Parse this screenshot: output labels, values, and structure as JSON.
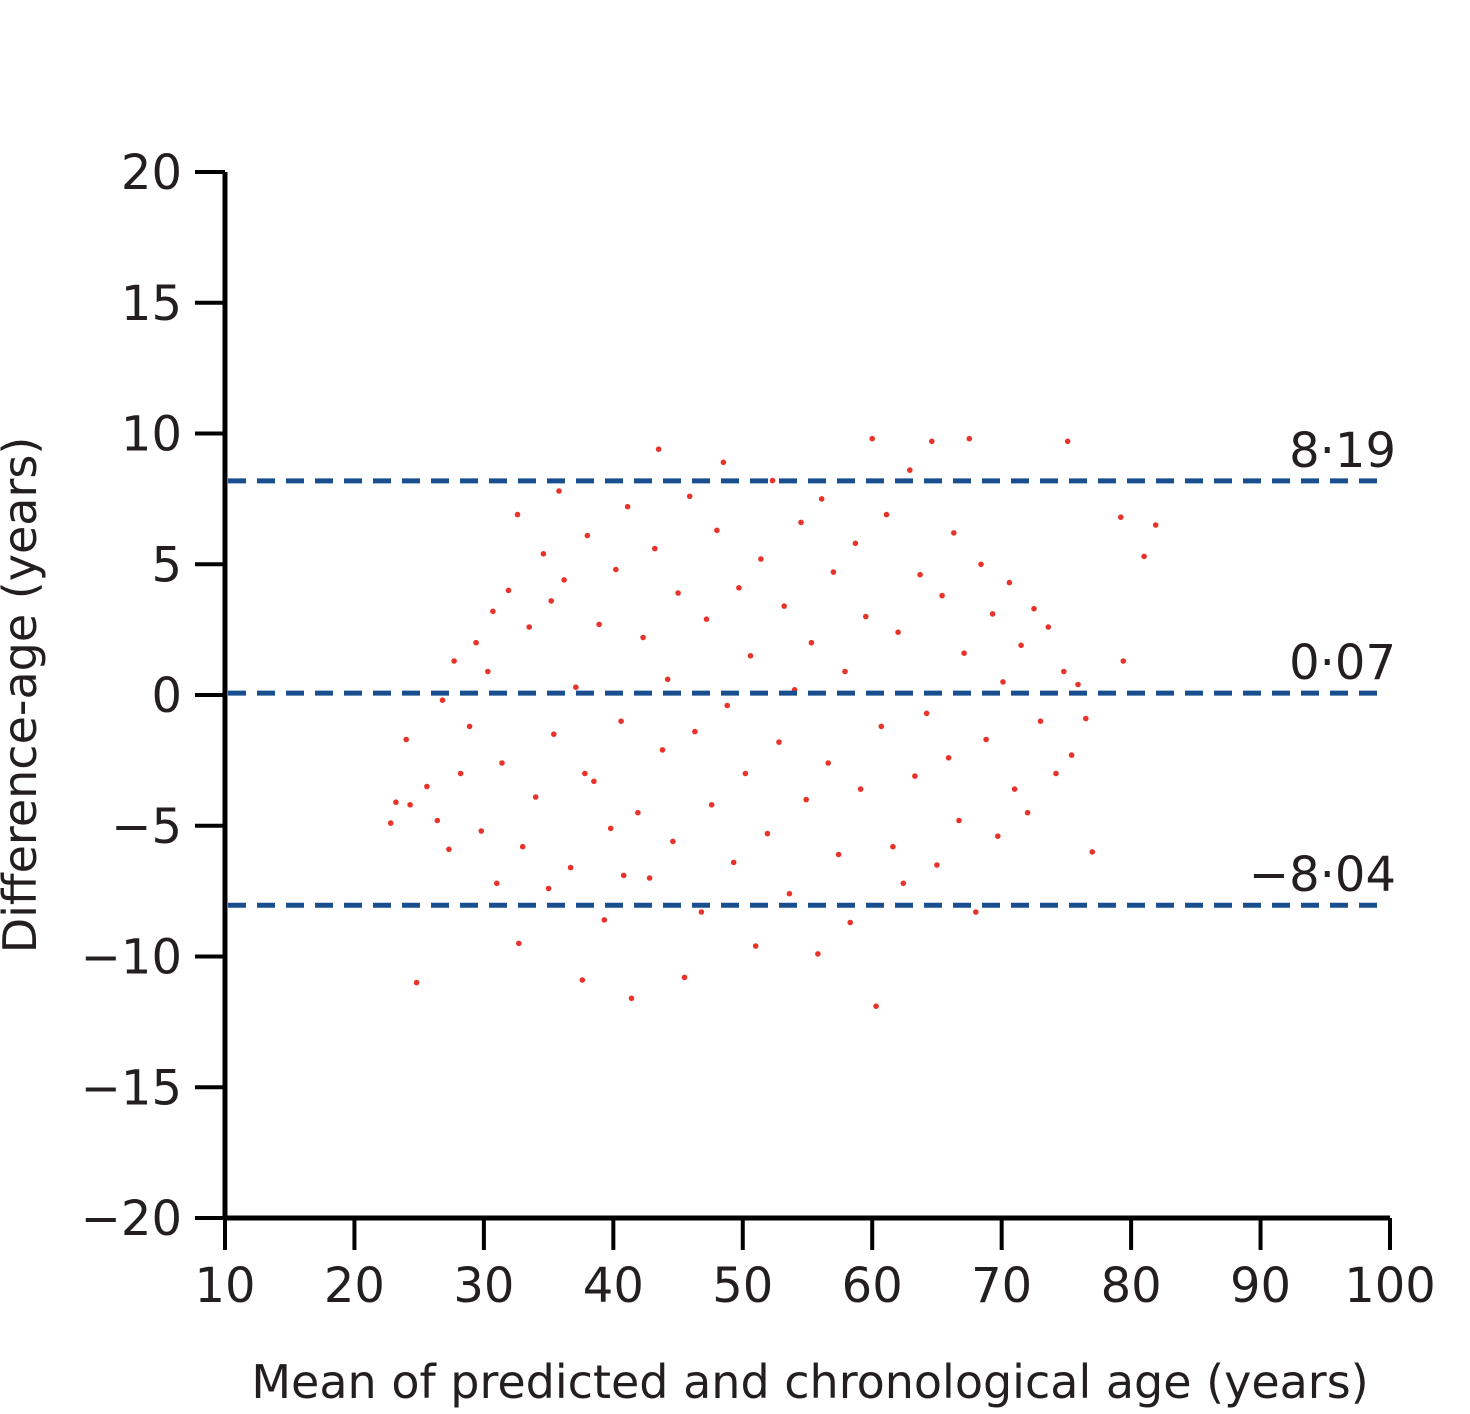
{
  "chart_data": {
    "type": "scatter",
    "title": "",
    "xlabel": "Mean of predicted and chronological age (years)",
    "ylabel": "Difference-age (years)",
    "xlim": [
      10,
      100
    ],
    "ylim": [
      -20,
      20
    ],
    "xticks": [
      10,
      20,
      30,
      40,
      50,
      60,
      70,
      80,
      90,
      100
    ],
    "yticks": [
      20,
      15,
      10,
      5,
      0,
      -5,
      -10,
      -15,
      -20
    ],
    "xtick_labels": [
      "10",
      "20",
      "30",
      "40",
      "50",
      "60",
      "70",
      "80",
      "90",
      "100"
    ],
    "ytick_labels": [
      "20",
      "15",
      "10",
      "5",
      "0",
      "−5",
      "−10",
      "−15",
      "−20"
    ],
    "point_color": "#e8332a",
    "line_color": "#1a4f8f",
    "grid": false,
    "reference_lines": [
      {
        "y": 8.19,
        "label": "8·19"
      },
      {
        "y": 0.07,
        "label": "0·07"
      },
      {
        "y": -8.04,
        "label": "−8·04"
      }
    ],
    "points": [
      [
        22.8,
        -4.9
      ],
      [
        23.2,
        -4.1
      ],
      [
        24.0,
        -1.7
      ],
      [
        24.3,
        -4.2
      ],
      [
        24.8,
        -11.0
      ],
      [
        25.6,
        -3.5
      ],
      [
        26.4,
        -4.8
      ],
      [
        26.8,
        -0.2
      ],
      [
        27.3,
        -5.9
      ],
      [
        27.7,
        1.3
      ],
      [
        28.2,
        -3.0
      ],
      [
        28.9,
        -1.2
      ],
      [
        29.4,
        2.0
      ],
      [
        29.8,
        -5.2
      ],
      [
        30.3,
        0.9
      ],
      [
        30.7,
        3.2
      ],
      [
        31.0,
        -7.2
      ],
      [
        31.4,
        -2.6
      ],
      [
        31.9,
        4.0
      ],
      [
        32.6,
        6.9
      ],
      [
        32.7,
        -9.5
      ],
      [
        33.0,
        -5.8
      ],
      [
        33.5,
        2.6
      ],
      [
        34.0,
        -3.9
      ],
      [
        34.6,
        5.4
      ],
      [
        35.0,
        -7.4
      ],
      [
        35.4,
        -1.5
      ],
      [
        35.8,
        7.8
      ],
      [
        36.2,
        4.4
      ],
      [
        36.7,
        -6.6
      ],
      [
        37.1,
        0.3
      ],
      [
        37.6,
        -10.9
      ],
      [
        38.0,
        6.1
      ],
      [
        38.5,
        -3.3
      ],
      [
        38.9,
        2.7
      ],
      [
        39.3,
        -8.6
      ],
      [
        39.8,
        -5.1
      ],
      [
        40.2,
        4.8
      ],
      [
        40.6,
        -1.0
      ],
      [
        41.1,
        7.2
      ],
      [
        41.4,
        -11.6
      ],
      [
        41.9,
        -4.5
      ],
      [
        42.3,
        2.2
      ],
      [
        42.8,
        -7.0
      ],
      [
        43.2,
        5.6
      ],
      [
        43.5,
        9.4
      ],
      [
        43.8,
        -2.1
      ],
      [
        44.2,
        0.6
      ],
      [
        44.6,
        -5.6
      ],
      [
        45.0,
        3.9
      ],
      [
        45.5,
        -10.8
      ],
      [
        45.9,
        7.6
      ],
      [
        46.3,
        -1.4
      ],
      [
        46.8,
        -8.3
      ],
      [
        47.2,
        2.9
      ],
      [
        47.6,
        -4.2
      ],
      [
        48.0,
        6.3
      ],
      [
        48.5,
        8.9
      ],
      [
        48.8,
        -0.4
      ],
      [
        49.3,
        -6.4
      ],
      [
        49.7,
        4.1
      ],
      [
        50.2,
        -3.0
      ],
      [
        50.6,
        1.5
      ],
      [
        51.0,
        -9.6
      ],
      [
        51.4,
        5.2
      ],
      [
        51.9,
        -5.3
      ],
      [
        52.3,
        8.2
      ],
      [
        52.8,
        -1.8
      ],
      [
        53.2,
        3.4
      ],
      [
        53.6,
        -7.6
      ],
      [
        54.0,
        0.2
      ],
      [
        54.5,
        6.6
      ],
      [
        54.9,
        -4.0
      ],
      [
        55.3,
        2.0
      ],
      [
        55.8,
        -9.9
      ],
      [
        56.1,
        7.5
      ],
      [
        56.6,
        -2.6
      ],
      [
        57.0,
        4.7
      ],
      [
        57.4,
        -6.1
      ],
      [
        57.9,
        0.9
      ],
      [
        58.3,
        -8.7
      ],
      [
        58.7,
        5.8
      ],
      [
        59.1,
        -3.6
      ],
      [
        59.5,
        3.0
      ],
      [
        60.0,
        9.8
      ],
      [
        60.3,
        -11.9
      ],
      [
        60.7,
        -1.2
      ],
      [
        61.1,
        6.9
      ],
      [
        61.6,
        -5.8
      ],
      [
        62.0,
        2.4
      ],
      [
        62.4,
        -7.2
      ],
      [
        62.9,
        8.6
      ],
      [
        63.3,
        -3.1
      ],
      [
        63.7,
        4.6
      ],
      [
        64.2,
        -0.7
      ],
      [
        64.6,
        9.7
      ],
      [
        65.0,
        -6.5
      ],
      [
        65.4,
        3.8
      ],
      [
        65.9,
        -2.4
      ],
      [
        66.3,
        6.2
      ],
      [
        66.7,
        -4.8
      ],
      [
        67.1,
        1.6
      ],
      [
        67.5,
        9.8
      ],
      [
        68.0,
        -8.3
      ],
      [
        68.4,
        5.0
      ],
      [
        68.8,
        -1.7
      ],
      [
        69.3,
        3.1
      ],
      [
        69.7,
        -5.4
      ],
      [
        70.1,
        0.5
      ],
      [
        70.6,
        4.3
      ],
      [
        71.0,
        -3.6
      ],
      [
        71.5,
        1.9
      ],
      [
        72.0,
        -4.5
      ],
      [
        72.5,
        3.3
      ],
      [
        73.0,
        -1.0
      ],
      [
        73.6,
        2.6
      ],
      [
        74.2,
        -3.0
      ],
      [
        74.8,
        0.9
      ],
      [
        75.4,
        -2.3
      ],
      [
        75.1,
        9.7
      ],
      [
        75.9,
        0.4
      ],
      [
        76.5,
        -0.9
      ],
      [
        77.0,
        -6.0
      ],
      [
        79.2,
        6.8
      ],
      [
        79.4,
        1.3
      ],
      [
        81.0,
        5.3
      ],
      [
        81.9,
        6.5
      ],
      [
        35.2,
        3.6
      ],
      [
        37.8,
        -3.0
      ],
      [
        40.8,
        -6.9
      ]
    ]
  }
}
